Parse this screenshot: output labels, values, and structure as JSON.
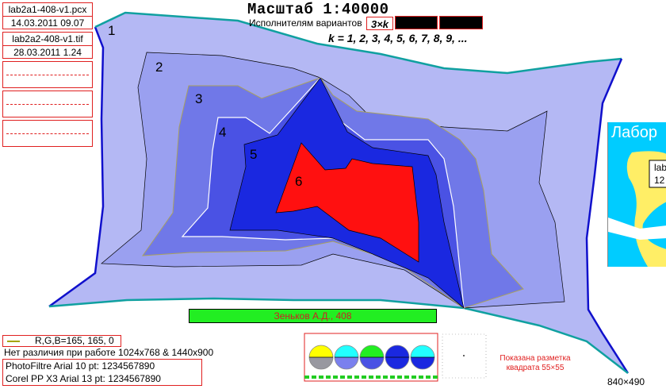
{
  "files": [
    {
      "name": "lab2a1-408-v1.pcx",
      "date": "14.03.2011 09.07"
    },
    {
      "name": "lab2a2-408-v1.tif",
      "date": "28.03.2011 1.24"
    }
  ],
  "header": {
    "title": "Масштаб 1:40000",
    "subtitle": "Исполнителям вариантов",
    "variant": "3×k",
    "formula": "k = 1, 2, 3, 4, 5, 6, 7, 8, 9, ..."
  },
  "map": {
    "zones": [
      {
        "label": "1",
        "color": "#b4b8f4"
      },
      {
        "label": "2",
        "color": "#9aa0f0"
      },
      {
        "label": "3",
        "color": "#7078e8"
      },
      {
        "label": "4",
        "color": "#4a52e4"
      },
      {
        "label": "5",
        "color": "#1a28e0"
      },
      {
        "label": "6",
        "color": "#ff1010"
      }
    ],
    "border_color": "#1010cc",
    "outline_color": "#10a0a0"
  },
  "author": "Зеньков А.Д., 408",
  "legend": {
    "text": "R,G,B=165, 165, 0",
    "color": "#a5a500"
  },
  "note": "Нет различия при работе 1024x768  & 1440x900",
  "fonts": [
    {
      "app": "PhotoFiltre  Arial  10 pt:",
      "sample": "1234567890"
    },
    {
      "app": "Corel PP X3  Arial 13 pt:",
      "sample": "1234567890"
    }
  ],
  "grid_label": "Показана разметка квадрата 55×55",
  "size_label": "840×490",
  "lab_panel": {
    "title": "Лабор",
    "line1": "lab",
    "line2": "12"
  },
  "swatches": {
    "top": [
      "#ffff00",
      "#22ffff",
      "#22ee22",
      "#1a28e0",
      "#22ffff"
    ],
    "bottom": [
      "#9898a0",
      "#7a80ee",
      "#4a52e4",
      "#1a28e0",
      "#1a28e0"
    ]
  }
}
